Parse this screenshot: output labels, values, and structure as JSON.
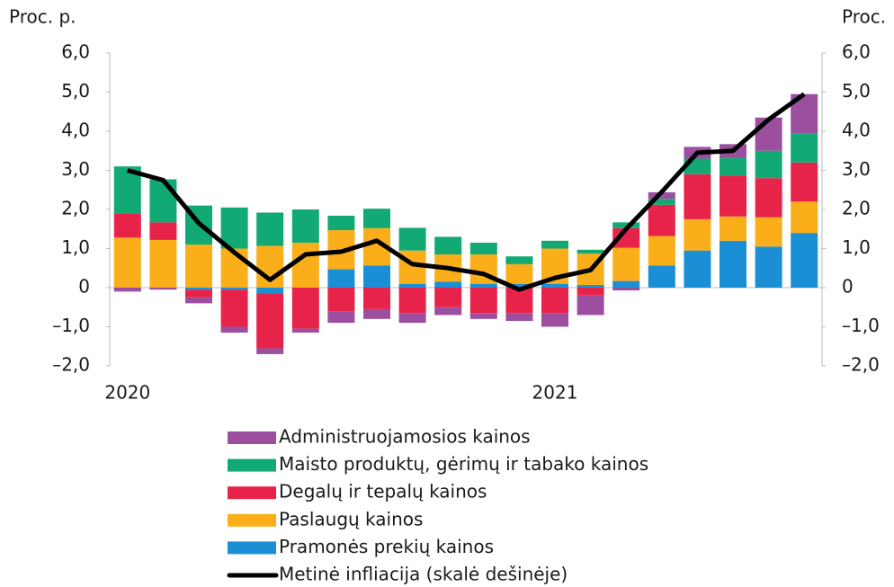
{
  "chart_data": {
    "type": "bar",
    "y_label": "Proc. p.",
    "y2_label": "Proc.",
    "categories": [
      "2020",
      null,
      null,
      null,
      null,
      null,
      null,
      null,
      null,
      null,
      null,
      null,
      "2021",
      null,
      null,
      null,
      null,
      null,
      null,
      null
    ],
    "stacked": true,
    "series": [
      {
        "name": "Administruojamosios kainos",
        "color": "#9b4f9e",
        "values": [
          -0.1,
          -0.05,
          -0.15,
          -0.15,
          -0.15,
          -0.1,
          -0.3,
          -0.25,
          -0.25,
          -0.2,
          -0.15,
          -0.2,
          -0.35,
          -0.5,
          -0.07,
          0.17,
          0.3,
          0.35,
          0.85,
          1.0
        ]
      },
      {
        "name": "Maisto produktų, gėrimų ir tabako kainos",
        "color": "#12a974",
        "values": [
          1.2,
          1.1,
          1.0,
          1.05,
          0.85,
          0.85,
          0.37,
          0.5,
          0.58,
          0.45,
          0.3,
          0.2,
          0.2,
          0.1,
          0.15,
          0.15,
          0.4,
          0.45,
          0.7,
          0.75
        ]
      },
      {
        "name": "Degalų ir tepalų kainos",
        "color": "#e8234a",
        "values": [
          0.62,
          0.45,
          -0.2,
          -0.95,
          -1.4,
          -1.05,
          -0.6,
          -0.55,
          -0.65,
          -0.5,
          -0.65,
          -0.65,
          -0.65,
          -0.2,
          0.5,
          0.8,
          1.15,
          1.05,
          1.0,
          1.0
        ]
      },
      {
        "name": "Paslaugų kainos",
        "color": "#f9ae1a",
        "values": [
          1.28,
          1.22,
          1.1,
          1.0,
          1.07,
          1.15,
          1.0,
          0.95,
          0.85,
          0.7,
          0.75,
          0.5,
          0.9,
          0.8,
          0.85,
          0.75,
          0.8,
          0.62,
          0.75,
          0.8
        ]
      },
      {
        "name": "Pramonės prekių kainos",
        "color": "#1a8fd6",
        "values": [
          0,
          0,
          -0.05,
          -0.05,
          -0.15,
          0,
          0.47,
          0.57,
          0.1,
          0.15,
          0.1,
          0.1,
          0.1,
          0.07,
          0.17,
          0.57,
          0.95,
          1.2,
          1.05,
          1.4
        ]
      },
      {
        "name": "Metinė infliacija (skalė dešinėje)",
        "color": "#000000",
        "type": "line",
        "axis": "y2",
        "values": [
          3.0,
          2.75,
          1.65,
          0.9,
          0.2,
          0.85,
          0.92,
          1.2,
          0.6,
          0.5,
          0.35,
          -0.05,
          0.25,
          0.45,
          1.5,
          2.45,
          3.45,
          3.5,
          4.3,
          4.95
        ]
      }
    ],
    "ylim": [
      -2,
      6
    ],
    "yticks": [
      {
        "value": -2,
        "label": "–2,0"
      },
      {
        "value": -1,
        "label": "–1,0"
      },
      0,
      {
        "value": 1,
        "label": "1,0"
      },
      {
        "value": 2,
        "label": "2,0"
      },
      {
        "value": 3,
        "label": "3,0"
      },
      {
        "value": 4,
        "label": "4,0"
      },
      {
        "value": 5,
        "label": "5,0"
      },
      {
        "value": 6,
        "label": "6,0"
      }
    ],
    "y2lim": [
      -2,
      6
    ],
    "y2ticks": [
      {
        "value": -2,
        "label": "–2,0"
      },
      {
        "value": -1,
        "label": "–1,0"
      },
      0,
      {
        "value": 1,
        "label": "1,0"
      },
      {
        "value": 2,
        "label": "2,0"
      },
      {
        "value": 3,
        "label": "3,0"
      },
      {
        "value": 4,
        "label": "4,0"
      },
      {
        "value": 5,
        "label": "5,0"
      },
      {
        "value": 6,
        "label": "6,0"
      }
    ],
    "legend": "bottom"
  }
}
